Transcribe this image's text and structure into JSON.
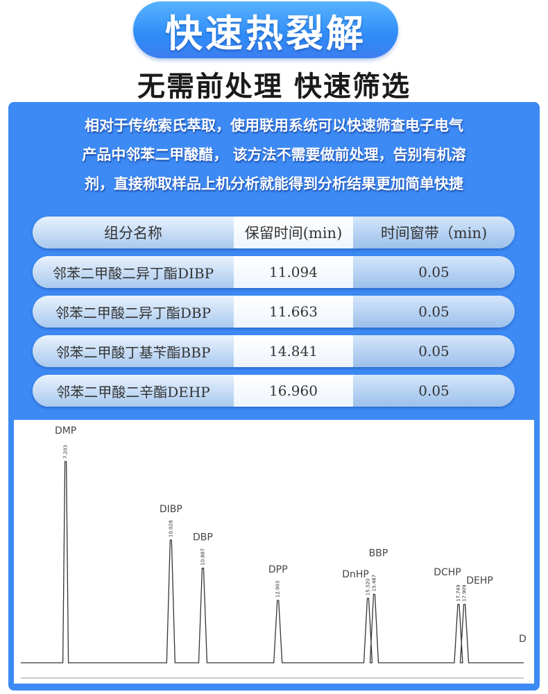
{
  "header": {
    "title": "快速热裂解",
    "subtitle": "无需前处理 快速筛选"
  },
  "intro": {
    "lines": [
      "相对于传统索氏萃取，使用联用系统可以快速筛查电子电气",
      "产品中邻苯二甲酸醋， 该方法不需要做前处理，告别有机溶",
      "剂，直接称取样品上机分析就能得到分析结果更加简单快捷"
    ]
  },
  "table": {
    "columns": [
      "组分名称",
      "保留时间(min)",
      "时间窗带（min)"
    ],
    "rows": [
      [
        "邻苯二甲酸二异丁酯DIBP",
        "11.094",
        "0.05"
      ],
      [
        "邻苯二甲酸二异丁酯DBP",
        "11.663",
        "0.05"
      ],
      [
        "邻苯二甲酸丁基苄酯BBP",
        "14.841",
        "0.05"
      ],
      [
        "邻苯二甲酸二辛酯DEHP",
        "16.960",
        "0.05"
      ]
    ]
  },
  "accent_color": "#3d8af5",
  "chart_data": {
    "type": "line",
    "title": "",
    "xlabel": "",
    "ylabel": "",
    "xlim": [
      6,
      19.5
    ],
    "grid": false,
    "peaks": [
      {
        "label": "DMP",
        "rt": "7.203",
        "x": 7.203,
        "height": 100
      },
      {
        "label": "DIBP",
        "rt": "10.028",
        "x": 10.028,
        "height": 61
      },
      {
        "label": "DBP",
        "rt": "10.887",
        "x": 10.887,
        "height": 47
      },
      {
        "label": "DPP",
        "rt": "12.903",
        "x": 12.903,
        "height": 31
      },
      {
        "label": "DnHP",
        "rt": "15.320",
        "x": 15.32,
        "height": 32
      },
      {
        "label": "BBP",
        "rt": "15.487",
        "x": 15.487,
        "height": 34
      },
      {
        "label": "DCHP",
        "rt": "17.749",
        "x": 17.749,
        "height": 29
      },
      {
        "label": "DEHP",
        "rt": "17.909",
        "x": 17.909,
        "height": 29
      }
    ],
    "truncated_label": "D"
  }
}
